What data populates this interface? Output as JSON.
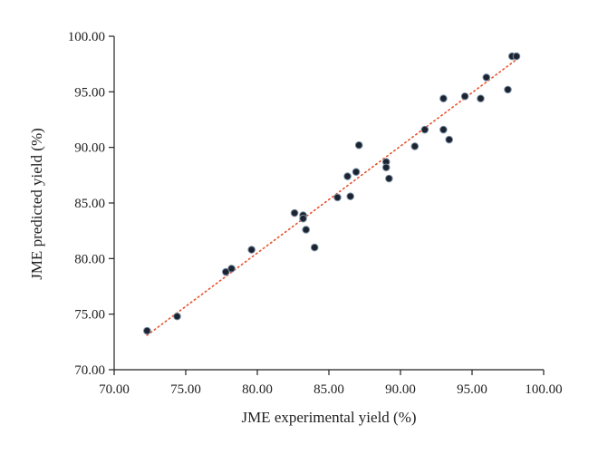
{
  "chart_data": {
    "type": "scatter",
    "xlabel": "JME experimental yield (%)",
    "ylabel": "JME predicted yield (%)",
    "xlim": [
      70,
      100
    ],
    "ylim": [
      70,
      100
    ],
    "xticks": [
      "70.00",
      "75.00",
      "80.00",
      "85.00",
      "90.00",
      "95.00",
      "100.00"
    ],
    "yticks": [
      "70.00",
      "75.00",
      "80.00",
      "85.00",
      "90.00",
      "95.00",
      "100.00"
    ],
    "grid": false,
    "points": [
      {
        "x": 72.3,
        "y": 73.5
      },
      {
        "x": 74.4,
        "y": 74.8
      },
      {
        "x": 77.8,
        "y": 78.8
      },
      {
        "x": 78.2,
        "y": 79.1
      },
      {
        "x": 79.6,
        "y": 80.8
      },
      {
        "x": 82.6,
        "y": 84.1
      },
      {
        "x": 83.2,
        "y": 83.9
      },
      {
        "x": 83.2,
        "y": 83.6
      },
      {
        "x": 83.4,
        "y": 82.6
      },
      {
        "x": 84.0,
        "y": 81.0
      },
      {
        "x": 85.6,
        "y": 85.5
      },
      {
        "x": 86.3,
        "y": 87.4
      },
      {
        "x": 86.5,
        "y": 85.6
      },
      {
        "x": 86.9,
        "y": 87.8
      },
      {
        "x": 87.1,
        "y": 90.2
      },
      {
        "x": 89.0,
        "y": 88.7
      },
      {
        "x": 89.0,
        "y": 88.2
      },
      {
        "x": 89.2,
        "y": 87.2
      },
      {
        "x": 91.0,
        "y": 90.1
      },
      {
        "x": 91.7,
        "y": 91.6
      },
      {
        "x": 93.0,
        "y": 94.4
      },
      {
        "x": 93.0,
        "y": 91.6
      },
      {
        "x": 93.4,
        "y": 90.7
      },
      {
        "x": 94.5,
        "y": 94.6
      },
      {
        "x": 95.6,
        "y": 94.4
      },
      {
        "x": 96.0,
        "y": 96.3
      },
      {
        "x": 97.5,
        "y": 95.2
      },
      {
        "x": 97.8,
        "y": 98.2
      },
      {
        "x": 98.1,
        "y": 98.2
      }
    ],
    "trendline": {
      "style": "dotted",
      "color": "#e8502a",
      "x": [
        72.3,
        98.1
      ],
      "y": [
        73.1,
        97.9
      ]
    },
    "marker_color": "#1b2430"
  }
}
